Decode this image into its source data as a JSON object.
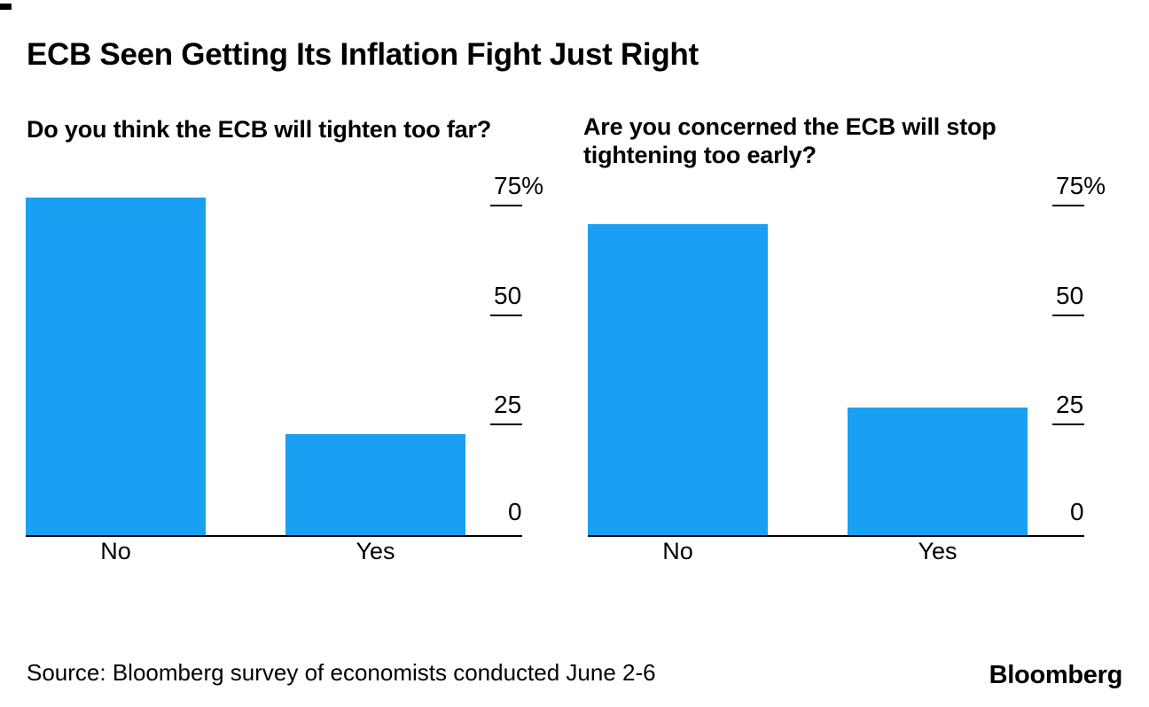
{
  "header": {
    "title": "ECB Seen Getting Its Inflation Fight Just Right"
  },
  "chart_data": [
    {
      "type": "bar",
      "title": "Do you think the ECB will tighten too far?",
      "categories": [
        "No",
        "Yes"
      ],
      "values": [
        77,
        23
      ],
      "unit": "%",
      "ylim": [
        0,
        80
      ],
      "yticks": [
        {
          "label": "75%",
          "value": 75
        },
        {
          "label": "50",
          "value": 50
        },
        {
          "label": "25",
          "value": 25
        },
        {
          "label": "0",
          "value": 0
        }
      ],
      "grid": false,
      "legend": false
    },
    {
      "type": "bar",
      "title": "Are you concerned the ECB will stop tightening too early?",
      "categories": [
        "No",
        "Yes"
      ],
      "values": [
        71,
        29
      ],
      "unit": "%",
      "ylim": [
        0,
        80
      ],
      "yticks": [
        {
          "label": "75%",
          "value": 75
        },
        {
          "label": "50",
          "value": 50
        },
        {
          "label": "25",
          "value": 25
        },
        {
          "label": "0",
          "value": 0
        }
      ],
      "grid": false,
      "legend": false
    }
  ],
  "footer": {
    "source": "Source: Bloomberg survey of economists conducted June 2-6",
    "logo": "Bloomberg"
  },
  "colors": {
    "bar_blue": "#1AA0F3",
    "text_black": "#000000"
  }
}
